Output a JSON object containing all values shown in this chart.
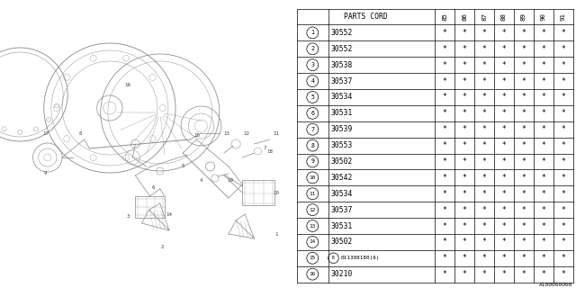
{
  "diagram_label": "A100000060",
  "col_years": [
    "85",
    "86",
    "87",
    "88",
    "89",
    "90",
    "91"
  ],
  "rows": [
    {
      "num": "1",
      "part": "30552",
      "vals": [
        "*",
        "*",
        "*",
        "*",
        "*",
        "*",
        "*"
      ]
    },
    {
      "num": "2",
      "part": "30552",
      "vals": [
        "*",
        "*",
        "*",
        "*",
        "*",
        "*",
        "*"
      ]
    },
    {
      "num": "3",
      "part": "30538",
      "vals": [
        "*",
        "*",
        "*",
        "*",
        "*",
        "*",
        "*"
      ]
    },
    {
      "num": "4",
      "part": "30537",
      "vals": [
        "*",
        "*",
        "*",
        "*",
        "*",
        "*",
        "*"
      ]
    },
    {
      "num": "5",
      "part": "30534",
      "vals": [
        "*",
        "*",
        "*",
        "*",
        "*",
        "*",
        "*"
      ]
    },
    {
      "num": "6",
      "part": "30531",
      "vals": [
        "*",
        "*",
        "*",
        "*",
        "*",
        "*",
        "*"
      ]
    },
    {
      "num": "7",
      "part": "30539",
      "vals": [
        "*",
        "*",
        "*",
        "*",
        "*",
        "*",
        "*"
      ]
    },
    {
      "num": "8",
      "part": "30553",
      "vals": [
        "*",
        "*",
        "*",
        "*",
        "*",
        "*",
        "*"
      ]
    },
    {
      "num": "9",
      "part": "30502",
      "vals": [
        "*",
        "*",
        "*",
        "*",
        "*",
        "*",
        "*"
      ]
    },
    {
      "num": "10",
      "part": "30542",
      "vals": [
        "*",
        "*",
        "*",
        "*",
        "*",
        "*",
        "*"
      ]
    },
    {
      "num": "11",
      "part": "30534",
      "vals": [
        "*",
        "*",
        "*",
        "*",
        "*",
        "*",
        "*"
      ]
    },
    {
      "num": "12",
      "part": "30537",
      "vals": [
        "*",
        "*",
        "*",
        "*",
        "*",
        "*",
        "*"
      ]
    },
    {
      "num": "13",
      "part": "30531",
      "vals": [
        "*",
        "*",
        "*",
        "*",
        "*",
        "*",
        "*"
      ]
    },
    {
      "num": "14",
      "part": "30502",
      "vals": [
        "*",
        "*",
        "*",
        "*",
        "*",
        "*",
        "*"
      ]
    },
    {
      "num": "15",
      "part": "B011308180(6)",
      "vals": [
        "*",
        "*",
        "*",
        "*",
        "*",
        "*",
        "*"
      ]
    },
    {
      "num": "16",
      "part": "30210",
      "vals": [
        "*",
        "*",
        "*",
        "*",
        "*",
        "*",
        "*"
      ]
    }
  ],
  "bg_color": "#ffffff",
  "lc": "#888888",
  "tc": "#444444",
  "lw_diagram": 0.5
}
